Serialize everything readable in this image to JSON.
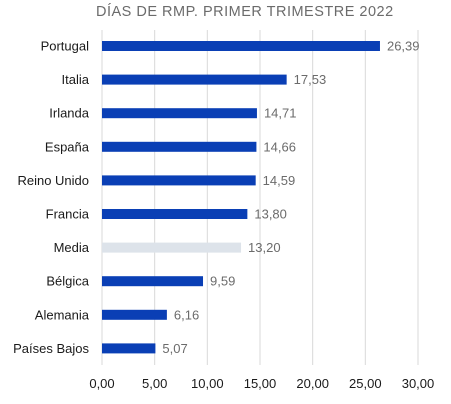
{
  "chart_data": {
    "type": "bar",
    "orientation": "horizontal",
    "title": "DÍAS DE RMP. PRIMER TRIMESTRE 2022",
    "categories": [
      "Portugal",
      "Italia",
      "Irlanda",
      "España",
      "Reino Unido",
      "Francia",
      "Media",
      "Bélgica",
      "Alemania",
      "Países Bajos"
    ],
    "values": [
      26.39,
      17.53,
      14.71,
      14.66,
      14.59,
      13.8,
      13.2,
      9.59,
      6.16,
      5.07
    ],
    "value_labels": [
      "26,39",
      "17,53",
      "14,71",
      "14,66",
      "14,59",
      "13,80",
      "13,20",
      "9,59",
      "6,16",
      "5,07"
    ],
    "x_ticks": [
      0,
      5,
      10,
      15,
      20,
      25,
      30
    ],
    "x_tick_labels": [
      "0,00",
      "5,00",
      "10,00",
      "15,00",
      "20,00",
      "25,00",
      "30,00"
    ],
    "xlim": [
      0,
      30
    ],
    "grid": "vertical",
    "colors": {
      "bar": "#0a3fb5",
      "highlight_bar": "#dde3ea",
      "highlight_category": "Media",
      "grid": "#d9d9d9",
      "title": "#6b6b6b",
      "value_label": "#6b6b6b"
    }
  }
}
